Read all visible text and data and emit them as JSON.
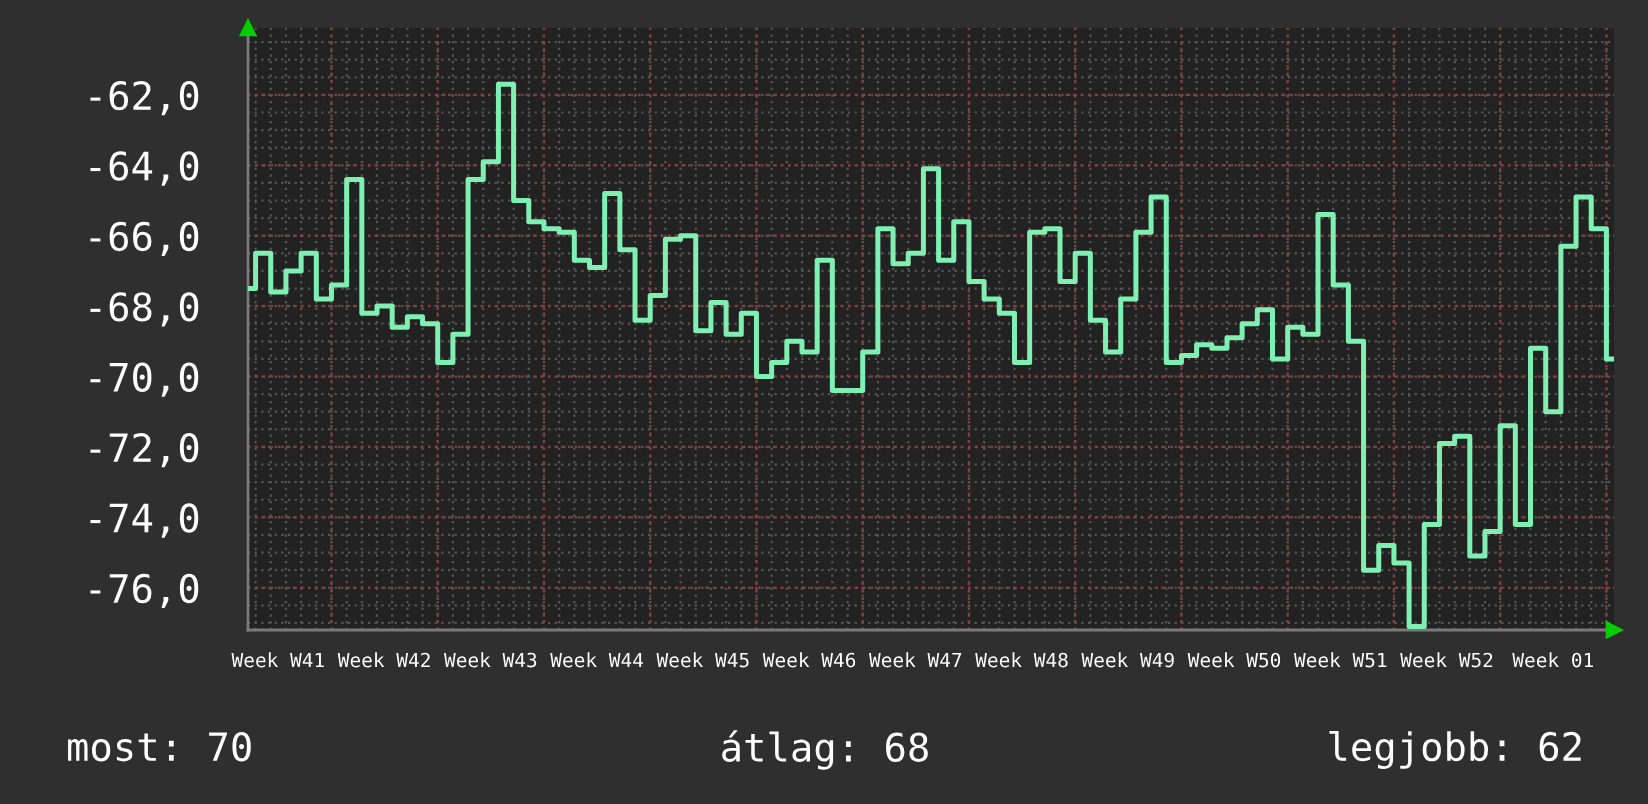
{
  "chart_data": {
    "type": "step",
    "color": "#7fefb2",
    "categories": [
      null,
      null,
      "Week W41",
      null,
      null,
      null,
      null,
      null,
      null,
      "Week W42",
      null,
      null,
      null,
      null,
      null,
      null,
      "Week W43",
      null,
      null,
      null,
      null,
      null,
      null,
      "Week W44",
      null,
      null,
      null,
      null,
      null,
      null,
      "Week W45",
      null,
      null,
      null,
      null,
      null,
      null,
      "Week W46",
      null,
      null,
      null,
      null,
      null,
      null,
      "Week W47",
      null,
      null,
      null,
      null,
      null,
      null,
      "Week W48",
      null,
      null,
      null,
      null,
      null,
      null,
      "Week W49",
      null,
      null,
      null,
      null,
      null,
      null,
      "Week W50",
      null,
      null,
      null,
      null,
      null,
      null,
      "Week W51",
      null,
      null,
      null,
      null,
      null,
      null,
      "Week W52",
      null,
      null,
      null,
      null,
      null,
      null,
      "Week 01",
      null,
      null,
      null,
      null
    ],
    "values": [
      -67.5,
      -66.5,
      -67.6,
      -67.0,
      -66.5,
      -67.8,
      -67.4,
      -64.4,
      -68.2,
      -68.0,
      -68.6,
      -68.3,
      -68.5,
      -69.6,
      -68.8,
      -64.4,
      -63.9,
      -61.7,
      -65.0,
      -65.6,
      -65.8,
      -65.9,
      -66.7,
      -66.9,
      -64.8,
      -66.4,
      -68.4,
      -67.7,
      -66.1,
      -66.0,
      -68.7,
      -67.9,
      -68.8,
      -68.2,
      -70.0,
      -69.6,
      -69.0,
      -69.3,
      -66.7,
      -70.4,
      -70.4,
      -69.3,
      -65.8,
      -66.8,
      -66.5,
      -64.1,
      -66.7,
      -65.6,
      -67.3,
      -67.8,
      -68.2,
      -69.6,
      -65.9,
      -65.8,
      -67.3,
      -66.5,
      -68.4,
      -69.3,
      -67.8,
      -65.9,
      -64.9,
      -69.6,
      -69.4,
      -69.1,
      -69.2,
      -68.9,
      -68.5,
      -68.1,
      -69.5,
      -68.6,
      -68.8,
      -65.4,
      -67.4,
      -69.0,
      -75.5,
      -74.8,
      -75.3,
      -77.1,
      -74.2,
      -71.9,
      -71.7,
      -75.1,
      -74.4,
      -71.4,
      -74.2,
      -69.2,
      -71.0,
      -66.3,
      -64.9,
      -65.8,
      -69.5
    ],
    "ylim": [
      -77.2,
      -60.1
    ],
    "yticks": [
      {
        "value": -62,
        "label": "-62,0"
      },
      {
        "value": -64,
        "label": "-64,0"
      },
      {
        "value": -66,
        "label": "-66,0"
      },
      {
        "value": -68,
        "label": "-68,0"
      },
      {
        "value": -70,
        "label": "-70,0"
      },
      {
        "value": -72,
        "label": "-72,0"
      },
      {
        "value": -74,
        "label": "-74,0"
      },
      {
        "value": -76,
        "label": "-76,0"
      }
    ],
    "grid": true,
    "annotations": [
      "most: 70",
      "átlag: 68",
      "legjobb: 62"
    ]
  }
}
